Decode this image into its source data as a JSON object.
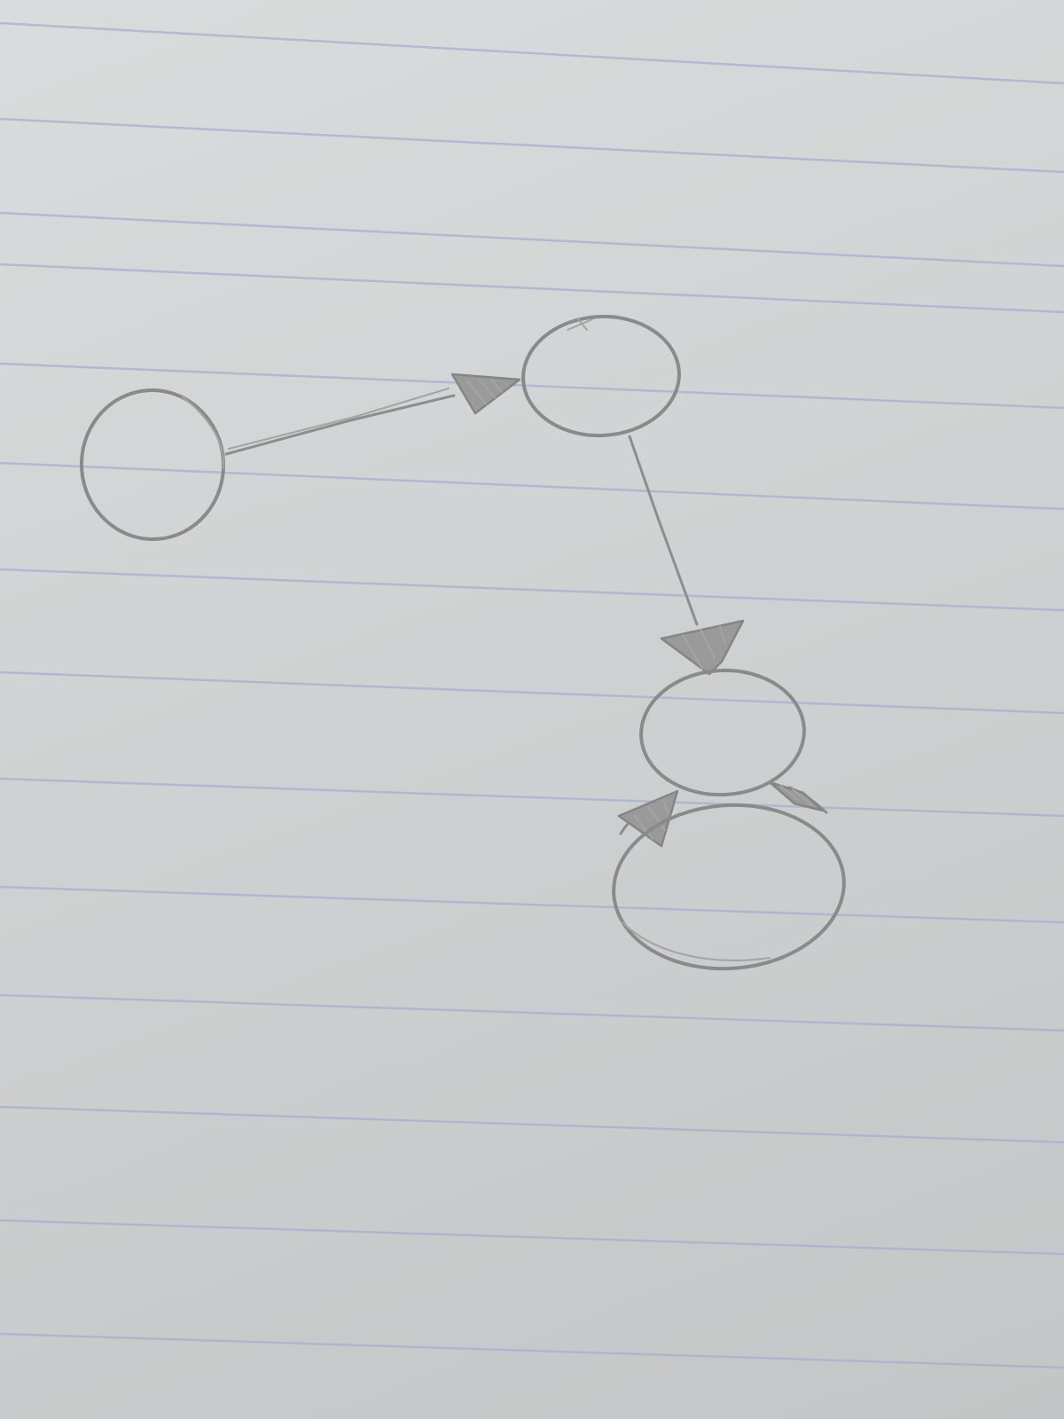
{
  "notebook": {
    "ruled_line_color": "#a9aed0",
    "pencil_color": "#8a8a8a",
    "paper_color": "#d3d6d6"
  },
  "diagram": {
    "type": "hand-drawn directed graph",
    "nodes": [
      {
        "id": "node-a",
        "label": ""
      },
      {
        "id": "node-b",
        "label": ""
      },
      {
        "id": "node-c",
        "label": ""
      },
      {
        "id": "node-d",
        "label": ""
      }
    ],
    "edges": [
      {
        "id": "edge-a-b",
        "from": "node-a",
        "to": "node-b",
        "directed": true
      },
      {
        "id": "edge-b-c",
        "from": "node-b",
        "to": "node-c",
        "directed": true
      },
      {
        "id": "edge-c-d",
        "from": "node-c",
        "to": "node-d",
        "directed": true
      },
      {
        "id": "edge-d-c",
        "from": "node-d",
        "to": "node-c",
        "directed": true
      }
    ]
  }
}
